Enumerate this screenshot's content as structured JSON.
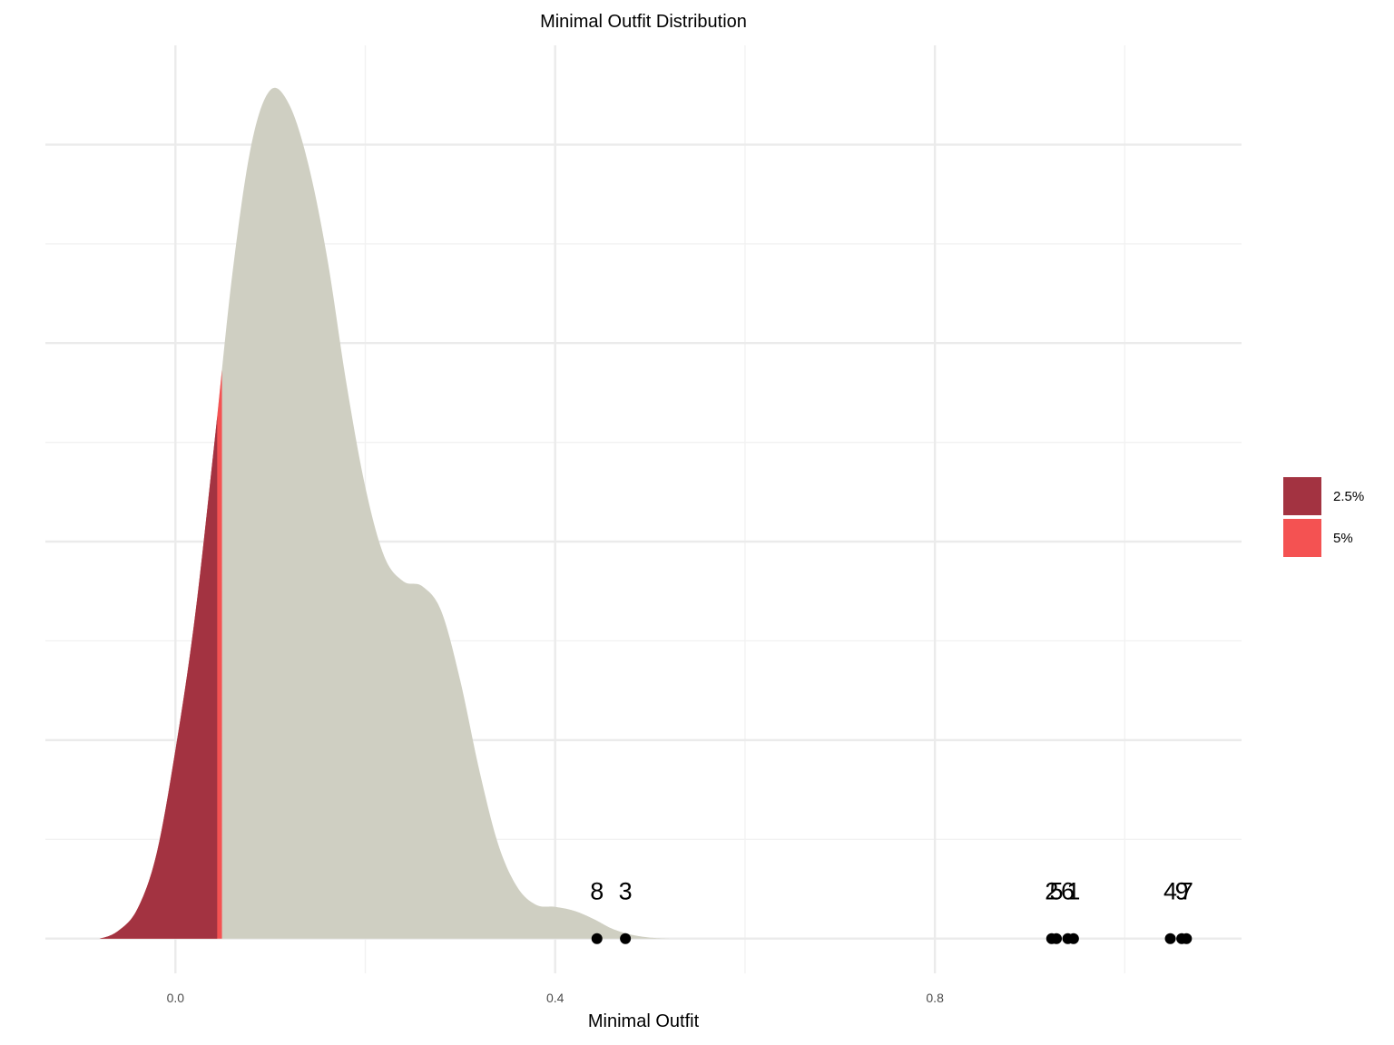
{
  "chart_data": {
    "type": "area",
    "title": "Minimal Outfit Distribution",
    "xlabel": "Minimal Outfit",
    "ylabel": "",
    "xlim": [
      -0.137,
      1.123
    ],
    "ylim": [
      -0.35,
      9.0
    ],
    "x_ticks": [
      {
        "value": 0.0,
        "label": "0.0"
      },
      {
        "value": 0.4,
        "label": "0.4"
      },
      {
        "value": 0.8,
        "label": "0.8"
      }
    ],
    "x_minor_ticks": [
      0.2,
      0.6,
      1.0
    ],
    "y_major_ticks": [
      0,
      2,
      4,
      6,
      8
    ],
    "y_minor_ticks": [
      1,
      3,
      5,
      7
    ],
    "y_tick_labels_shown": false,
    "grid": true,
    "density_curve": {
      "x": [
        -0.08,
        -0.06,
        -0.04,
        -0.02,
        0.0,
        0.02,
        0.04,
        0.06,
        0.08,
        0.1,
        0.12,
        0.14,
        0.16,
        0.18,
        0.2,
        0.22,
        0.24,
        0.26,
        0.28,
        0.3,
        0.32,
        0.34,
        0.36,
        0.38,
        0.4,
        0.42,
        0.44,
        0.46,
        0.48,
        0.5,
        0.52,
        0.54,
        0.56,
        0.58,
        0.6,
        0.62
      ],
      "y": [
        0.0,
        0.08,
        0.3,
        0.85,
        1.9,
        3.2,
        4.9,
        6.7,
        8.0,
        8.55,
        8.4,
        7.8,
        6.85,
        5.6,
        4.55,
        3.85,
        3.6,
        3.55,
        3.3,
        2.6,
        1.7,
        0.95,
        0.52,
        0.34,
        0.32,
        0.28,
        0.2,
        0.1,
        0.04,
        0.01,
        0.0,
        0.0,
        0.0,
        0.0,
        0.0,
        0.0
      ]
    },
    "fill_color": "#cfcfc2",
    "tails": [
      {
        "name": "2.5%",
        "upper": 0.044,
        "color": "#a33341"
      },
      {
        "name": "5%",
        "upper": 0.049,
        "color": "#f45252"
      }
    ],
    "points": [
      {
        "label": "8",
        "x": 0.444
      },
      {
        "label": "3",
        "x": 0.474
      },
      {
        "label": "2",
        "x": 0.923
      },
      {
        "label": "5",
        "x": 0.928
      },
      {
        "label": "6",
        "x": 0.94
      },
      {
        "label": "1",
        "x": 0.946
      },
      {
        "label": "4",
        "x": 1.048
      },
      {
        "label": "9",
        "x": 1.06
      },
      {
        "label": "7",
        "x": 1.065
      }
    ],
    "legend": {
      "placement": "right",
      "entries": [
        {
          "name": "2.5%",
          "color": "#a33341"
        },
        {
          "name": "5%",
          "color": "#f45252"
        }
      ]
    }
  }
}
